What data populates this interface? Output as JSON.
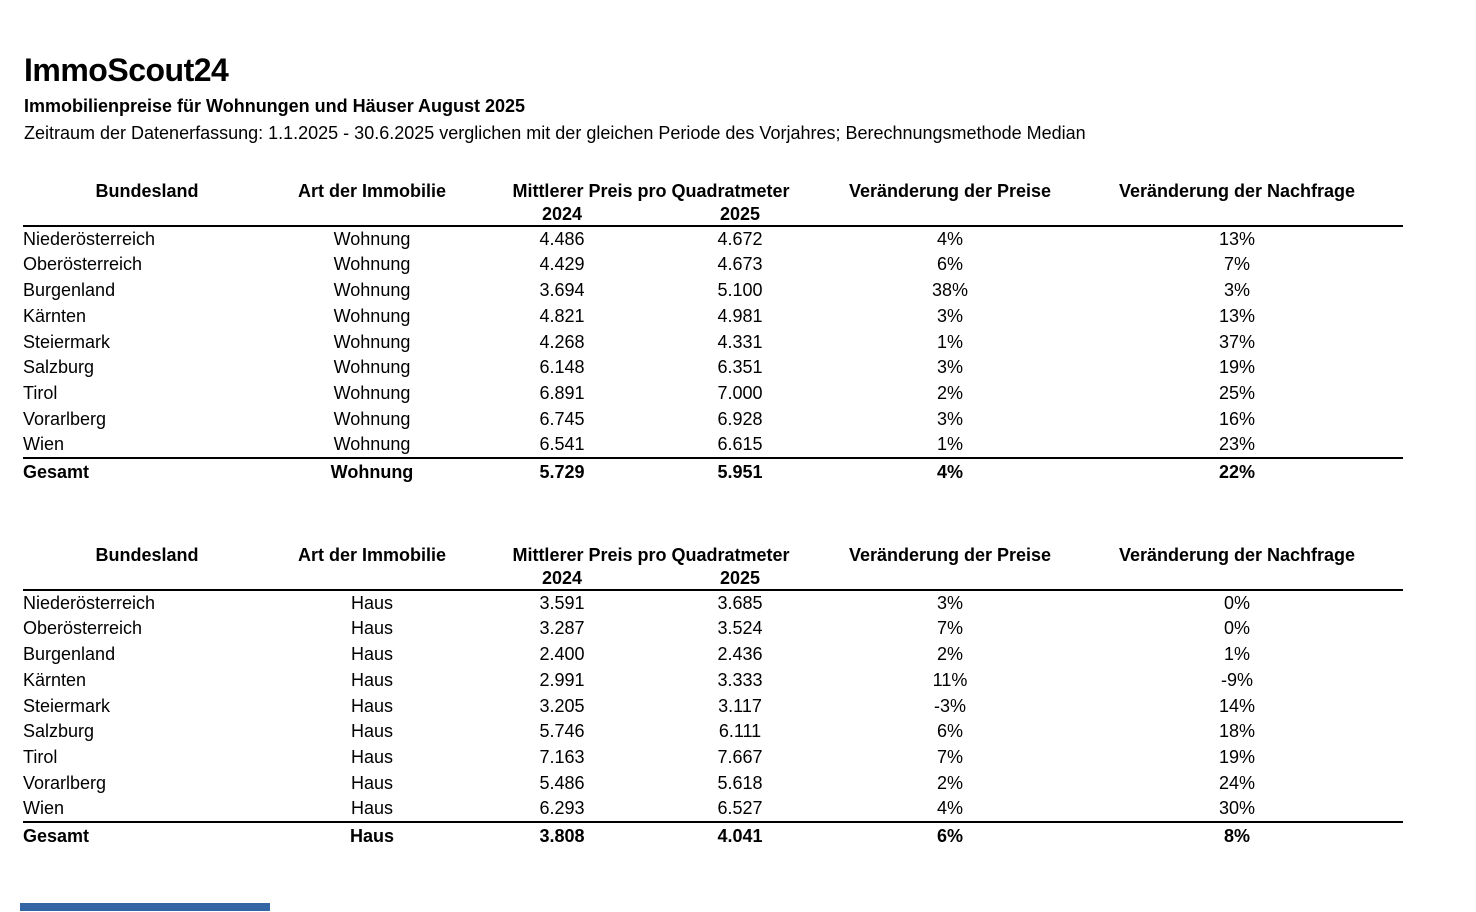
{
  "document": {
    "brand": "ImmoScout24",
    "subtitle": "Immobilienpreise für Wohnungen und Häuser August 2025",
    "period_note": "Zeitraum der Datenerfassung: 1.1.2025 - 30.6.2025 verglichen mit der gleichen Periode des Vorjahres; Berechnungsmethode Median"
  },
  "columns": {
    "bundesland": "Bundesland",
    "art": "Art der Immobilie",
    "price_group": "Mittlerer Preis pro Quadratmeter",
    "year_2024": "2024",
    "year_2025": "2025",
    "price_change": "Veränderung der Preise",
    "demand_change": "Veränderung der Nachfrage"
  },
  "tables": [
    {
      "name": "wohnungen",
      "rows": [
        [
          "Niederösterreich",
          "Wohnung",
          "4.486",
          "4.672",
          "4%",
          "13%"
        ],
        [
          "Oberösterreich",
          "Wohnung",
          "4.429",
          "4.673",
          "6%",
          "7%"
        ],
        [
          "Burgenland",
          "Wohnung",
          "3.694",
          "5.100",
          "38%",
          "3%"
        ],
        [
          "Kärnten",
          "Wohnung",
          "4.821",
          "4.981",
          "3%",
          "13%"
        ],
        [
          "Steiermark",
          "Wohnung",
          "4.268",
          "4.331",
          "1%",
          "37%"
        ],
        [
          "Salzburg",
          "Wohnung",
          "6.148",
          "6.351",
          "3%",
          "19%"
        ],
        [
          "Tirol",
          "Wohnung",
          "6.891",
          "7.000",
          "2%",
          "25%"
        ],
        [
          "Vorarlberg",
          "Wohnung",
          "6.745",
          "6.928",
          "3%",
          "16%"
        ],
        [
          "Wien",
          "Wohnung",
          "6.541",
          "6.615",
          "1%",
          "23%"
        ]
      ],
      "total_row": [
        "Gesamt",
        "Wohnung",
        "5.729",
        "5.951",
        "4%",
        "22%"
      ]
    },
    {
      "name": "haeuser",
      "rows": [
        [
          "Niederösterreich",
          "Haus",
          "3.591",
          "3.685",
          "3%",
          "0%"
        ],
        [
          "Oberösterreich",
          "Haus",
          "3.287",
          "3.524",
          "7%",
          "0%"
        ],
        [
          "Burgenland",
          "Haus",
          "2.400",
          "2.436",
          "2%",
          "1%"
        ],
        [
          "Kärnten",
          "Haus",
          "2.991",
          "3.333",
          "11%",
          "-9%"
        ],
        [
          "Steiermark",
          "Haus",
          "3.205",
          "3.117",
          "-3%",
          "14%"
        ],
        [
          "Salzburg",
          "Haus",
          "5.746",
          "6.111",
          "6%",
          "18%"
        ],
        [
          "Tirol",
          "Haus",
          "7.163",
          "7.667",
          "7%",
          "19%"
        ],
        [
          "Vorarlberg",
          "Haus",
          "5.486",
          "5.618",
          "2%",
          "24%"
        ],
        [
          "Wien",
          "Haus",
          "6.293",
          "6.527",
          "4%",
          "30%"
        ]
      ],
      "total_row": [
        "Gesamt",
        "Haus",
        "3.808",
        "4.041",
        "6%",
        "8%"
      ]
    }
  ],
  "footer": {
    "accent_color": "#3465a4"
  }
}
